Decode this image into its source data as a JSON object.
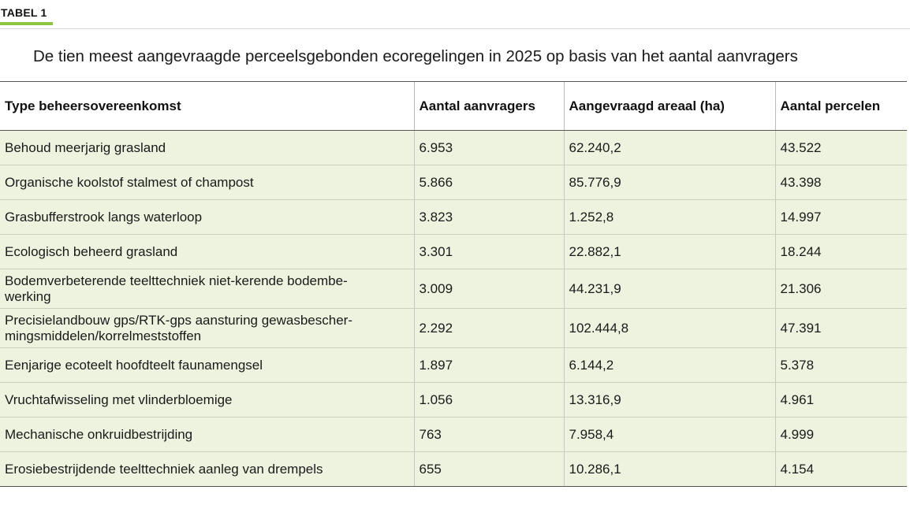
{
  "label": "TABEL 1",
  "title": "De tien meest aangevraagde perceelsgebonden ecoregelingen in 2025 op basis van het aantal aanvragers",
  "columns": [
    "Type beheersovereenkomst",
    "Aantal aanvragers",
    "Aangevraagd areaal (ha)",
    "Aantal percelen"
  ],
  "rows": [
    [
      "Behoud meerjarig grasland",
      "6.953",
      "62.240,2",
      "43.522"
    ],
    [
      "Organische koolstof stalmest of champost",
      "5.866",
      "85.776,9",
      "43.398"
    ],
    [
      "Grasbufferstrook langs waterloop",
      "3.823",
      "1.252,8",
      "14.997"
    ],
    [
      "Ecologisch beheerd grasland",
      "3.301",
      "22.882,1",
      "18.244"
    ],
    [
      "Bodemverbeterende teelttechniek niet-kerende bodembe-\nwerking",
      "3.009",
      "44.231,9",
      "21.306"
    ],
    [
      "Precisielandbouw gps/RTK-gps aansturing gewasbescher-\nmingsmiddelen/korrelmeststoffen",
      "2.292",
      "102.444,8",
      "47.391"
    ],
    [
      "Eenjarige ecoteelt hoofdteelt faunamengsel",
      "1.897",
      "6.144,2",
      "5.378"
    ],
    [
      "Vruchtafwisseling met vlinderbloemige",
      "1.056",
      "13.316,9",
      "4.961"
    ],
    [
      "Mechanische onkruidbestrijding",
      "763",
      "7.958,4",
      "4.999"
    ],
    [
      "Erosiebestrijdende teelttechniek aanleg van drempels",
      "655",
      "10.286,1",
      "4.154"
    ]
  ],
  "colors": {
    "accent": "#8cc63f",
    "row_fill": "#eef3df"
  }
}
